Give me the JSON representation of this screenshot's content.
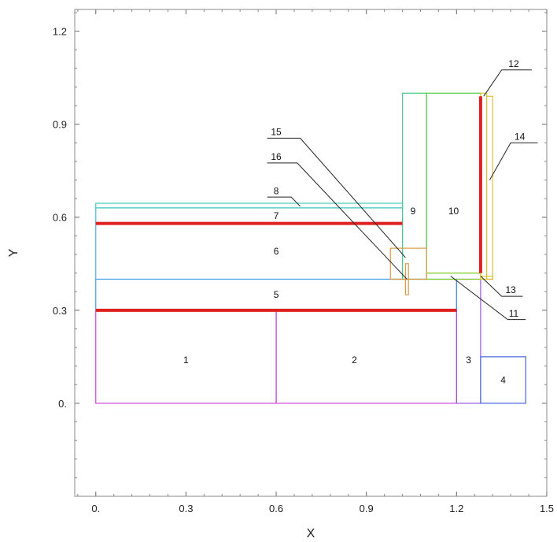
{
  "chart_data": {
    "type": "diagram",
    "xlabel": "X",
    "ylabel": "Y",
    "xlim": [
      -0.07,
      1.5
    ],
    "ylim": [
      -0.3,
      1.27
    ],
    "xticks": [
      {
        "value": 0.0,
        "label": "0."
      },
      {
        "value": 0.3,
        "label": "0.3"
      },
      {
        "value": 0.6,
        "label": "0.6"
      },
      {
        "value": 0.9,
        "label": "0.9"
      },
      {
        "value": 1.2,
        "label": "1.2"
      },
      {
        "value": 1.5,
        "label": "1.5"
      }
    ],
    "yticks": [
      {
        "value": 0.0,
        "label": "0."
      },
      {
        "value": 0.3,
        "label": "0.3"
      },
      {
        "value": 0.6,
        "label": "0.6"
      },
      {
        "value": 0.9,
        "label": "0.9"
      },
      {
        "value": 1.2,
        "label": "1.2"
      }
    ],
    "rects": [
      {
        "id": "1",
        "x0": 0.0,
        "y0": 0.0,
        "x1": 0.6,
        "y1": 0.3,
        "color": "#cc44dd"
      },
      {
        "id": "2",
        "x0": 0.6,
        "y0": 0.0,
        "x1": 1.2,
        "y1": 0.3,
        "color": "#cc44dd"
      },
      {
        "id": "3",
        "x0": 1.2,
        "y0": 0.0,
        "x1": 1.28,
        "y1": 0.4,
        "color": "#9955dd"
      },
      {
        "id": "4",
        "x0": 1.28,
        "y0": 0.0,
        "x1": 1.43,
        "y1": 0.15,
        "color": "#4466dd"
      },
      {
        "id": "5",
        "x0": 0.0,
        "y0": 0.3,
        "x1": 1.2,
        "y1": 0.4,
        "color": "#4499ee"
      },
      {
        "id": "6",
        "x0": 0.0,
        "y0": 0.4,
        "x1": 1.02,
        "y1": 0.58,
        "color": "#55aaee"
      },
      {
        "id": "7",
        "x0": 0.0,
        "y0": 0.58,
        "x1": 1.02,
        "y1": 0.63,
        "color": "#44bbdd"
      },
      {
        "id": "8",
        "x0": 0.0,
        "y0": 0.63,
        "x1": 1.02,
        "y1": 0.645,
        "color": "#44ccbb"
      },
      {
        "id": "9",
        "x0": 1.02,
        "y0": 0.4,
        "x1": 1.1,
        "y1": 1.0,
        "color": "#44cc88"
      },
      {
        "id": "10",
        "x0": 1.1,
        "y0": 0.42,
        "x1": 1.28,
        "y1": 1.0,
        "color": "#55cc44"
      },
      {
        "id": "11",
        "x0": 1.1,
        "y0": 0.4,
        "x1": 1.28,
        "y1": 0.42,
        "color": "#88cc33"
      },
      {
        "id": "12",
        "x0": 1.28,
        "y0": 0.4,
        "x1": 1.3,
        "y1": 1.0,
        "color": "#ddcc33"
      },
      {
        "id": "13",
        "x0": 1.28,
        "y0": 0.4,
        "x1": 1.32,
        "y1": 0.41,
        "color": "#ddcc33"
      },
      {
        "id": "14",
        "x0": 1.3,
        "y0": 0.4,
        "x1": 1.32,
        "y1": 0.99,
        "color": "#ddbb44"
      },
      {
        "id": "15",
        "x0": 0.98,
        "y0": 0.4,
        "x1": 1.1,
        "y1": 0.5,
        "color": "#dd9944"
      },
      {
        "id": "16",
        "x0": 1.03,
        "y0": 0.35,
        "x1": 1.04,
        "y1": 0.45,
        "color": "#dd9944"
      }
    ],
    "red_lines": [
      {
        "x0": 0.0,
        "y0": 0.3,
        "x1": 1.2,
        "y1": 0.3
      },
      {
        "x0": 0.0,
        "y0": 0.58,
        "x1": 1.02,
        "y1": 0.58
      },
      {
        "x0": 1.28,
        "y0": 0.42,
        "x1": 1.28,
        "y1": 0.99
      }
    ],
    "inline_labels": [
      {
        "text": "1",
        "x": 0.3,
        "y": 0.14
      },
      {
        "text": "2",
        "x": 0.86,
        "y": 0.14
      },
      {
        "text": "3",
        "x": 1.24,
        "y": 0.14
      },
      {
        "text": "4",
        "x": 1.355,
        "y": 0.075
      },
      {
        "text": "5",
        "x": 0.6,
        "y": 0.35
      },
      {
        "text": "6",
        "x": 0.6,
        "y": 0.49
      },
      {
        "text": "7",
        "x": 0.6,
        "y": 0.605
      },
      {
        "text": "9",
        "x": 1.055,
        "y": 0.62
      },
      {
        "text": "10",
        "x": 1.19,
        "y": 0.62
      }
    ],
    "callouts": [
      {
        "text": "8",
        "label_x": 0.6,
        "label_y": 0.685,
        "line": [
          [
            0.57,
            0.665
          ],
          [
            0.65,
            0.665
          ],
          [
            0.68,
            0.635
          ]
        ]
      },
      {
        "text": "12",
        "label_x": 1.39,
        "label_y": 1.095,
        "line": [
          [
            1.45,
            1.075
          ],
          [
            1.35,
            1.075
          ],
          [
            1.29,
            0.99
          ]
        ]
      },
      {
        "text": "14",
        "label_x": 1.41,
        "label_y": 0.86,
        "line": [
          [
            1.47,
            0.84
          ],
          [
            1.38,
            0.84
          ],
          [
            1.31,
            0.72
          ]
        ]
      },
      {
        "text": "13",
        "label_x": 1.38,
        "label_y": 0.365,
        "line": [
          [
            1.42,
            0.345
          ],
          [
            1.35,
            0.345
          ],
          [
            1.28,
            0.41
          ]
        ]
      },
      {
        "text": "11",
        "label_x": 1.39,
        "label_y": 0.29,
        "line": [
          [
            1.43,
            0.27
          ],
          [
            1.37,
            0.27
          ],
          [
            1.18,
            0.41
          ]
        ]
      },
      {
        "text": "15",
        "label_x": 0.6,
        "label_y": 0.875,
        "line": [
          [
            0.57,
            0.855
          ],
          [
            0.68,
            0.855
          ],
          [
            1.03,
            0.47
          ]
        ]
      },
      {
        "text": "16",
        "label_x": 0.6,
        "label_y": 0.795,
        "line": [
          [
            0.57,
            0.775
          ],
          [
            0.67,
            0.775
          ],
          [
            1.035,
            0.4
          ]
        ]
      }
    ]
  }
}
